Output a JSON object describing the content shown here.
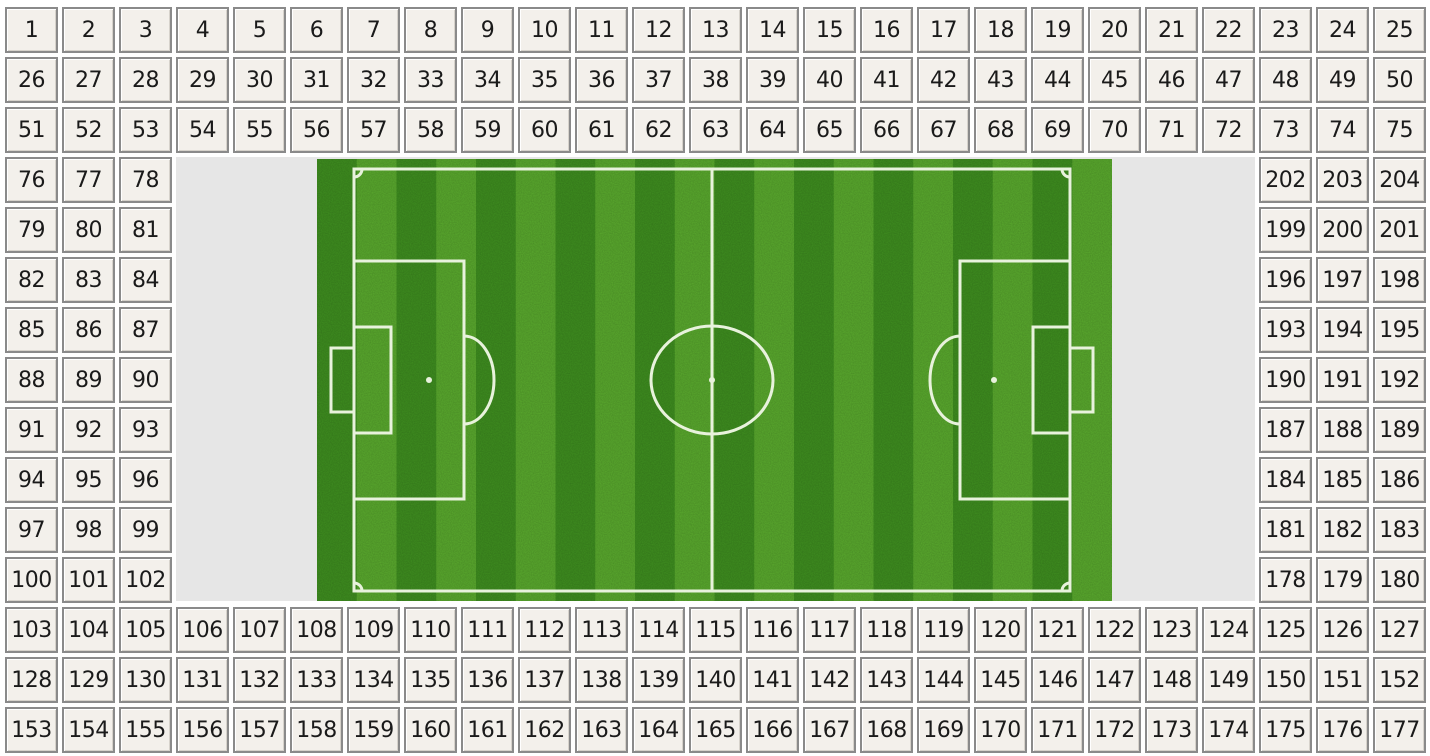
{
  "layout": {
    "columns": 25,
    "top_rows": [
      [
        "1",
        "2",
        "3",
        "4",
        "5",
        "6",
        "7",
        "8",
        "9",
        "10",
        "11",
        "12",
        "13",
        "14",
        "15",
        "16",
        "17",
        "18",
        "19",
        "20",
        "21",
        "22",
        "23",
        "24",
        "25"
      ],
      [
        "26",
        "27",
        "28",
        "29",
        "30",
        "31",
        "32",
        "33",
        "34",
        "35",
        "36",
        "37",
        "38",
        "39",
        "40",
        "41",
        "42",
        "43",
        "44",
        "45",
        "46",
        "47",
        "48",
        "49",
        "50"
      ],
      [
        "51",
        "52",
        "53",
        "54",
        "55",
        "56",
        "57",
        "58",
        "59",
        "60",
        "61",
        "62",
        "63",
        "64",
        "65",
        "66",
        "67",
        "68",
        "69",
        "70",
        "71",
        "72",
        "73",
        "74",
        "75"
      ]
    ],
    "left_block": [
      [
        "76",
        "77",
        "78"
      ],
      [
        "79",
        "80",
        "81"
      ],
      [
        "82",
        "83",
        "84"
      ],
      [
        "85",
        "86",
        "87"
      ],
      [
        "88",
        "89",
        "90"
      ],
      [
        "91",
        "92",
        "93"
      ],
      [
        "94",
        "95",
        "96"
      ],
      [
        "97",
        "98",
        "99"
      ],
      [
        "100",
        "101",
        "102"
      ]
    ],
    "right_block": [
      [
        "202",
        "203",
        "204"
      ],
      [
        "199",
        "200",
        "201"
      ],
      [
        "196",
        "197",
        "198"
      ],
      [
        "193",
        "194",
        "195"
      ],
      [
        "190",
        "191",
        "192"
      ],
      [
        "187",
        "188",
        "189"
      ],
      [
        "184",
        "185",
        "186"
      ],
      [
        "181",
        "182",
        "183"
      ],
      [
        "178",
        "179",
        "180"
      ]
    ],
    "bottom_rows": [
      [
        "103",
        "104",
        "105",
        "106",
        "107",
        "108",
        "109",
        "110",
        "111",
        "112",
        "113",
        "114",
        "115",
        "116",
        "117",
        "118",
        "119",
        "120",
        "121",
        "122",
        "123",
        "124",
        "125",
        "126",
        "127"
      ],
      [
        "128",
        "129",
        "130",
        "131",
        "132",
        "133",
        "134",
        "135",
        "136",
        "137",
        "138",
        "139",
        "140",
        "141",
        "142",
        "143",
        "144",
        "145",
        "146",
        "147",
        "148",
        "149",
        "150",
        "151",
        "152"
      ],
      [
        "153",
        "154",
        "155",
        "156",
        "157",
        "158",
        "159",
        "160",
        "161",
        "162",
        "163",
        "164",
        "165",
        "166",
        "167",
        "168",
        "169",
        "170",
        "171",
        "172",
        "173",
        "174",
        "175",
        "176",
        "177"
      ]
    ]
  },
  "colors": {
    "seat_background": "#f3f0eb",
    "seat_border": "#8a8a8a",
    "seat_text": "#1a1a1a",
    "inner_area": "#e6e6e6",
    "grass_dark": "#3f8f20",
    "grass_light": "#5aaa2e",
    "pitch_lines": "#e8f2dc"
  }
}
